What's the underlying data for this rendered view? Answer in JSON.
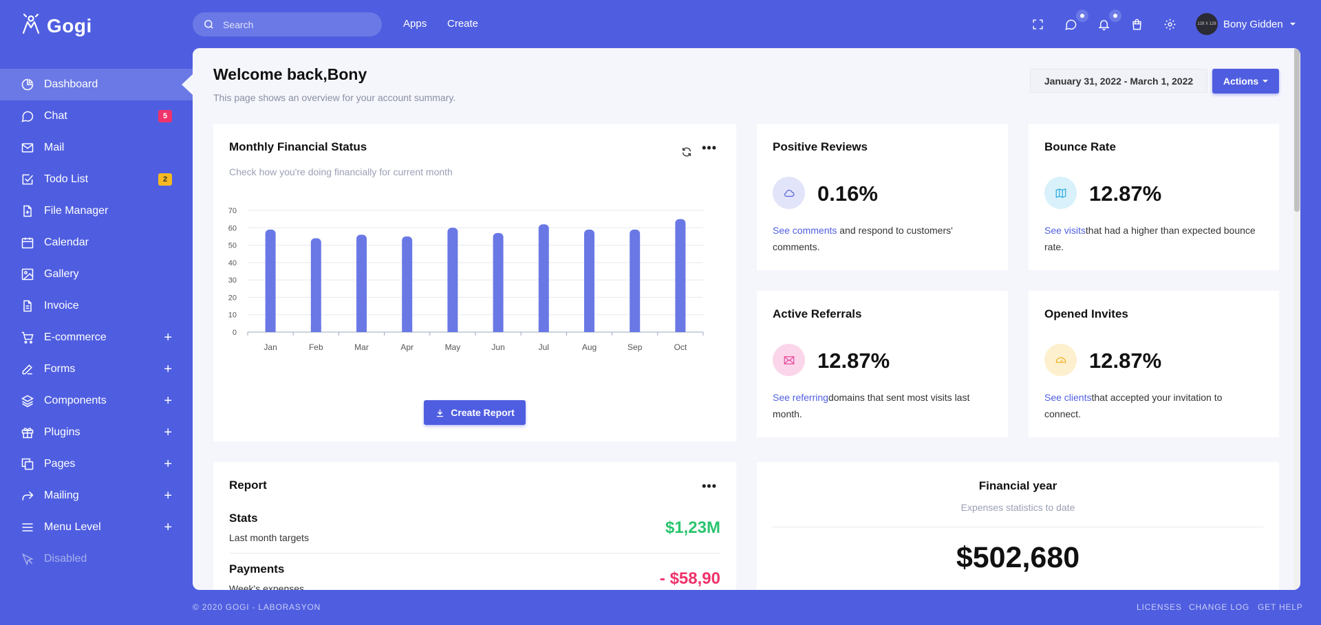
{
  "brand": {
    "name": "Gogi",
    "logo_icon": "hand-logo-icon"
  },
  "sidebar": {
    "items": [
      {
        "label": "Dashboard",
        "icon": "pie-chart-icon",
        "active": true
      },
      {
        "label": "Chat",
        "icon": "chat-bubble-icon",
        "badge": "5",
        "badge_color": "#f0326a"
      },
      {
        "label": "Mail",
        "icon": "mail-icon"
      },
      {
        "label": "Todo List",
        "icon": "checkbox-icon",
        "badge": "2",
        "badge_color": "#f5b921"
      },
      {
        "label": "File Manager",
        "icon": "file-plus-icon"
      },
      {
        "label": "Calendar",
        "icon": "calendar-icon"
      },
      {
        "label": "Gallery",
        "icon": "image-icon"
      },
      {
        "label": "Invoice",
        "icon": "document-icon"
      },
      {
        "label": "E-commerce",
        "icon": "cart-icon",
        "expand": "+"
      },
      {
        "label": "Forms",
        "icon": "pen-icon",
        "expand": "+"
      },
      {
        "label": "Components",
        "icon": "layers-icon",
        "expand": "+"
      },
      {
        "label": "Plugins",
        "icon": "gift-icon",
        "expand": "+"
      },
      {
        "label": "Pages",
        "icon": "copy-icon",
        "expand": "+"
      },
      {
        "label": "Mailing",
        "icon": "share-arrow-icon",
        "expand": "+"
      },
      {
        "label": "Menu Level",
        "icon": "menu-icon",
        "expand": "+"
      },
      {
        "label": "Disabled",
        "icon": "cursor-icon",
        "disabled": true
      }
    ]
  },
  "topbar": {
    "search_placeholder": "Search",
    "links": [
      "Apps",
      "Create"
    ],
    "icons": [
      "fullscreen-icon",
      "message-icon",
      "bell-icon",
      "shopping-bag-icon",
      "gear-icon"
    ],
    "user_name": "Bony Gidden",
    "avatar_text": "128 X 128"
  },
  "header": {
    "title": "Welcome back,Bony",
    "subtitle": "This page shows an overview for your account summary.",
    "date_range": "January 31, 2022 - March 1, 2022",
    "actions_label": "Actions"
  },
  "financial": {
    "title": "Monthly Financial Status",
    "subtitle": "Check how you're doing financially for current month",
    "button": "Create Report"
  },
  "chart_data": {
    "type": "bar",
    "categories": [
      "Jan",
      "Feb",
      "Mar",
      "Apr",
      "May",
      "Jun",
      "Jul",
      "Aug",
      "Sep",
      "Oct"
    ],
    "values": [
      59,
      54,
      56,
      55,
      60,
      57,
      62,
      59,
      59,
      65
    ],
    "ylim": [
      0,
      70
    ],
    "yticks": [
      0,
      10,
      20,
      30,
      40,
      50,
      60,
      70
    ],
    "color": "#6a78e5",
    "grid": true
  },
  "stats": [
    {
      "title": "Positive Reviews",
      "value": "0.16%",
      "icon": "cloud-icon",
      "icon_bg": "#e2e4fa",
      "icon_color": "#4f5ee0",
      "link": "See comments",
      "text": " and respond to customers' comments."
    },
    {
      "title": "Bounce Rate",
      "value": "12.87%",
      "icon": "map-icon",
      "icon_bg": "#d8f1fb",
      "icon_color": "#27a9dc",
      "link": "See visits",
      "text": "that had a higher than expected bounce rate."
    },
    {
      "title": "Active Referrals",
      "value": "12.87%",
      "icon": "mail-icon",
      "icon_bg": "#fbd6ea",
      "icon_color": "#e8469a",
      "link": "See referring",
      "text": "domains that sent most visits last month."
    },
    {
      "title": "Opened Invites",
      "value": "12.87%",
      "icon": "gauge-icon",
      "icon_bg": "#fdf0cf",
      "icon_color": "#f0b21e",
      "link": "See clients",
      "text": "that accepted your invitation to connect."
    }
  ],
  "report": {
    "title": "Report",
    "rows": [
      {
        "label": "Stats",
        "sub": "Last month targets",
        "value": "$1,23M",
        "color": "#2bc46e"
      },
      {
        "label": "Payments",
        "sub": "Week's expenses",
        "value": "- $58,90",
        "color": "#f0326a"
      }
    ]
  },
  "financial_year": {
    "title": "Financial year",
    "subtitle": "Expenses statistics to date",
    "value": "$502,680"
  },
  "footer": {
    "copyright": "© 2020 GOGI - LABORASYON",
    "links": [
      "LICENSES",
      "CHANGE LOG",
      "GET HELP"
    ]
  }
}
